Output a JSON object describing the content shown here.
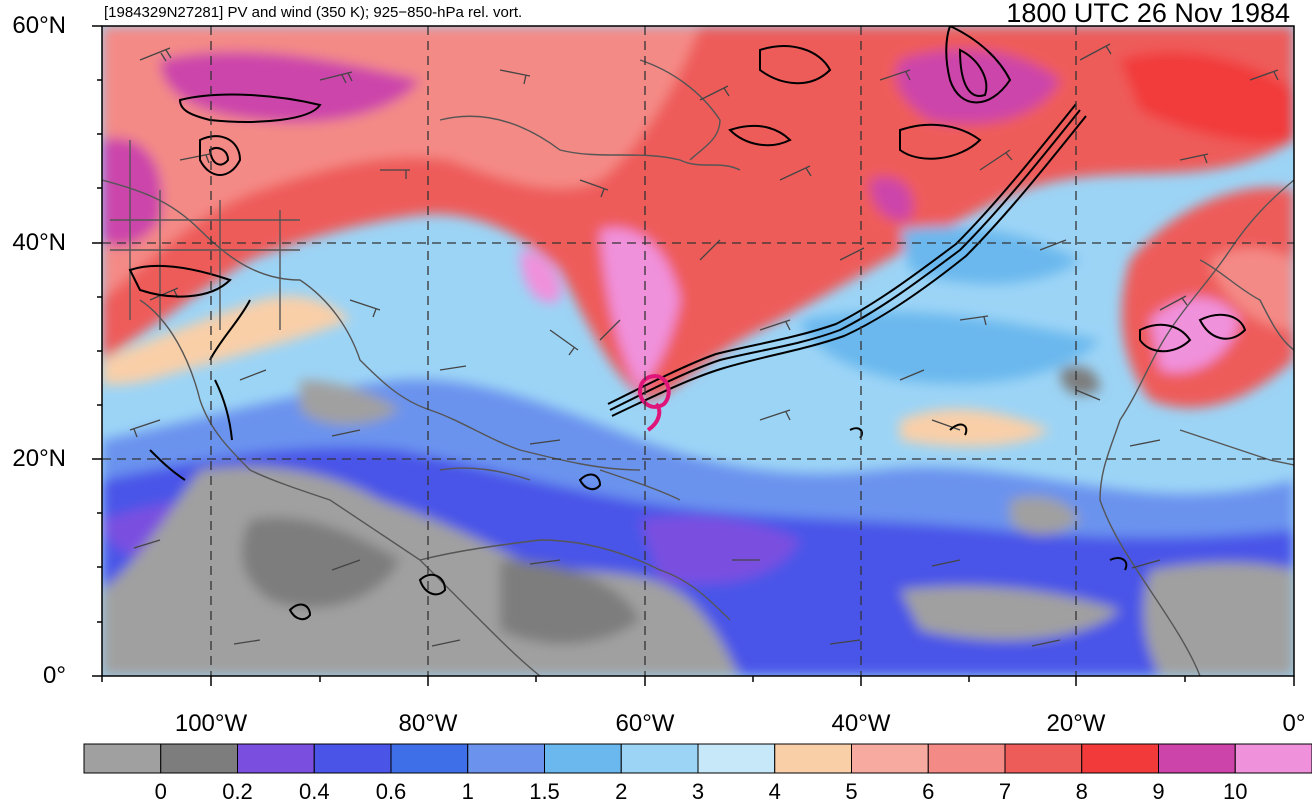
{
  "header": {
    "left_title": "[1984329N27281] PV and wind (350 K); 925−850-hPa rel. vort.",
    "right_title": "1800 UTC 26 Nov 1984"
  },
  "map": {
    "lat_labels": [
      "60°N",
      "40°N",
      "20°N",
      "0°"
    ],
    "lon_labels": [
      "100°W",
      "80°W",
      "60°W",
      "40°W",
      "20°W",
      "0°"
    ],
    "extent": {
      "lon_min": -110,
      "lon_max": 0,
      "lat_min": 0,
      "lat_max": 60
    },
    "storm_center": {
      "lon": -59,
      "lat": 26
    },
    "colors": {
      "vorticity_contour": "#000000",
      "coastline": "#555555",
      "wind_barb": "#444444",
      "storm_marker": "#e0157a",
      "grid": "#333333"
    }
  },
  "colorbar": {
    "labels": [
      "0",
      "0.2",
      "0.4",
      "0.6",
      "1",
      "1.5",
      "2",
      "3",
      "4",
      "5",
      "6",
      "7",
      "8",
      "9",
      "10"
    ],
    "colors": [
      "#a0a0a0",
      "#7d7d7d",
      "#7a4fe0",
      "#4a55e8",
      "#3f6fe8",
      "#6b93ee",
      "#6ab8ee",
      "#9cd4f6",
      "#c6e8f8",
      "#f9cfa8",
      "#f6aaa0",
      "#f48a86",
      "#ee5c5a",
      "#f23a3a",
      "#cc44aa",
      "#f091dc"
    ]
  }
}
